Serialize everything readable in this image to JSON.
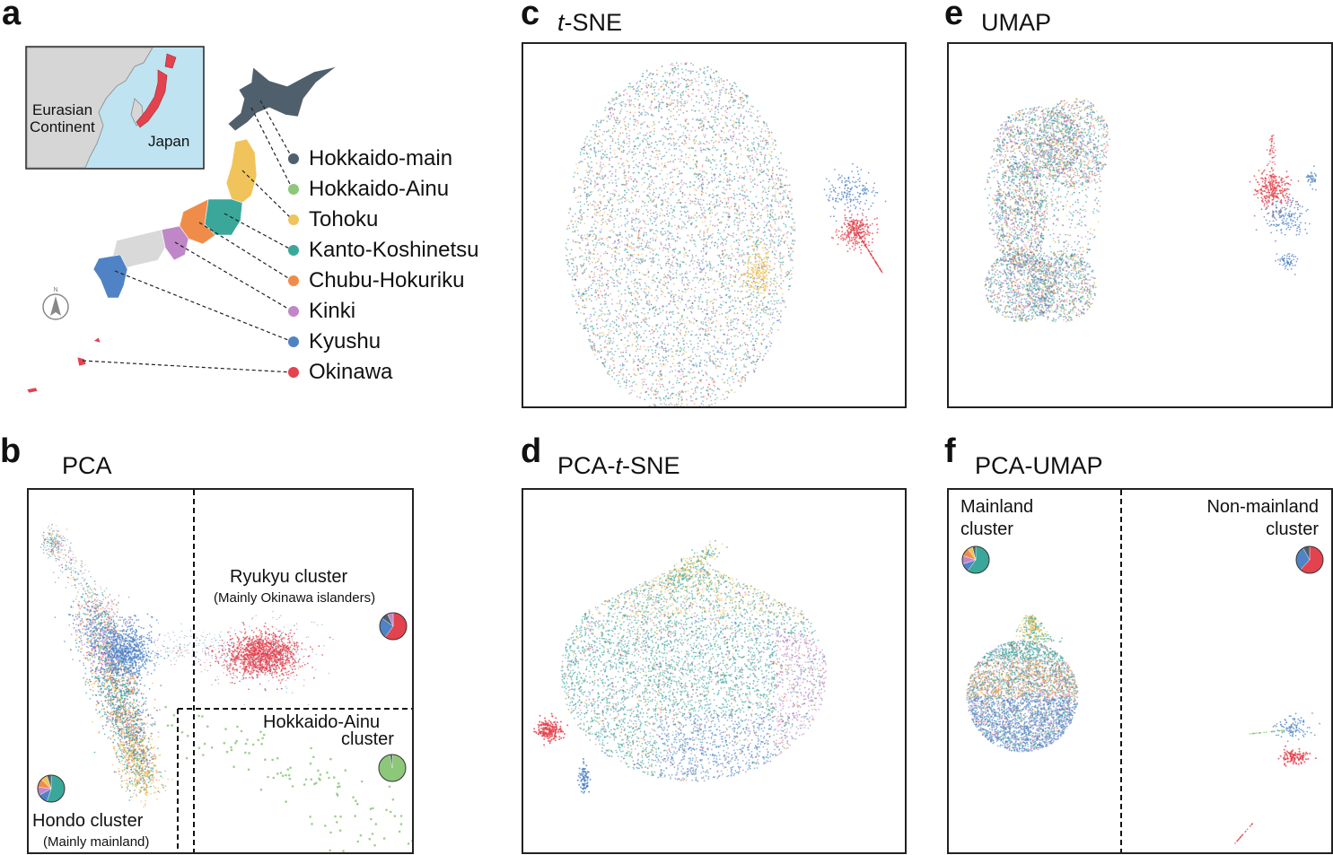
{
  "colors": {
    "hokkaido_main": "#4f5f6b",
    "hokkaido_ainu": "#8cc77a",
    "tohoku": "#f0c45a",
    "kanto": "#3aa79a",
    "chubu": "#f08c4a",
    "kinki": "#c087c8",
    "kyushu": "#4f83c6",
    "okinawa": "#e2434f",
    "hondo_text": "#3b97b3",
    "ryukyu_text": "#d9474f",
    "ainu_text": "#7ac267",
    "other_region": "#d9d9d9"
  },
  "panel_a": {
    "label": "a",
    "inset": {
      "continent": [
        "Eurasian",
        "Continent"
      ],
      "japan": "Japan"
    },
    "legend": [
      {
        "key": "hokkaido_main",
        "label": "Hokkaido-main"
      },
      {
        "key": "hokkaido_ainu",
        "label": "Hokkaido-Ainu"
      },
      {
        "key": "tohoku",
        "label": "Tohoku"
      },
      {
        "key": "kanto",
        "label": "Kanto-Koshinetsu"
      },
      {
        "key": "chubu",
        "label": "Chubu-Hokuriku"
      },
      {
        "key": "kinki",
        "label": "Kinki"
      },
      {
        "key": "kyushu",
        "label": "Kyushu"
      },
      {
        "key": "okinawa",
        "label": "Okinawa"
      }
    ],
    "compass": "N"
  },
  "panel_b": {
    "label": "b",
    "title": "PCA",
    "ryukyu": {
      "name": "Ryukyu cluster",
      "sub": "(Mainly Okinawa islanders)"
    },
    "ainu": {
      "name": [
        "Hokkaido-Ainu",
        "cluster"
      ]
    },
    "hondo": {
      "name": "Hondo cluster",
      "sub": "(Mainly mainland)"
    }
  },
  "panel_c": {
    "label": "c",
    "title_italic": "t",
    "title_rest": "-SNE"
  },
  "panel_d": {
    "label": "d",
    "title_prefix": "PCA-",
    "title_italic": "t",
    "title_rest": "-SNE"
  },
  "panel_e": {
    "label": "e",
    "title": "UMAP"
  },
  "panel_f": {
    "label": "f",
    "title": "PCA-UMAP",
    "mainland": [
      "Mainland",
      "cluster"
    ],
    "nonmainland": [
      "Non-mainland",
      "cluster"
    ]
  },
  "chart_data": [
    {
      "type": "scatter",
      "panel": "b",
      "title": "PCA",
      "clusters": [
        {
          "name": "Hondo cluster",
          "composition": {
            "kanto": 0.55,
            "kyushu": 0.12,
            "kinki": 0.1,
            "chubu": 0.1,
            "tohoku": 0.08,
            "hokkaido_main": 0.05
          }
        },
        {
          "name": "Ryukyu cluster",
          "composition": {
            "okinawa": 0.6,
            "kyushu": 0.25,
            "hokkaido_main": 0.08,
            "kinki": 0.07
          }
        },
        {
          "name": "Hokkaido-Ainu cluster",
          "composition": {
            "hokkaido_ainu": 0.97,
            "hokkaido_main": 0.03
          }
        }
      ]
    },
    {
      "type": "scatter",
      "panel": "c",
      "title": "t-SNE"
    },
    {
      "type": "scatter",
      "panel": "d",
      "title": "PCA-t-SNE"
    },
    {
      "type": "scatter",
      "panel": "e",
      "title": "UMAP"
    },
    {
      "type": "scatter",
      "panel": "f",
      "title": "PCA-UMAP",
      "clusters": [
        {
          "name": "Mainland cluster",
          "composition": {
            "kanto": 0.6,
            "kyushu": 0.1,
            "kinki": 0.1,
            "chubu": 0.1,
            "tohoku": 0.06,
            "hokkaido_main": 0.04
          }
        },
        {
          "name": "Non-mainland cluster",
          "composition": {
            "okinawa": 0.62,
            "kyushu": 0.3,
            "hokkaido_main": 0.08
          }
        }
      ]
    }
  ]
}
